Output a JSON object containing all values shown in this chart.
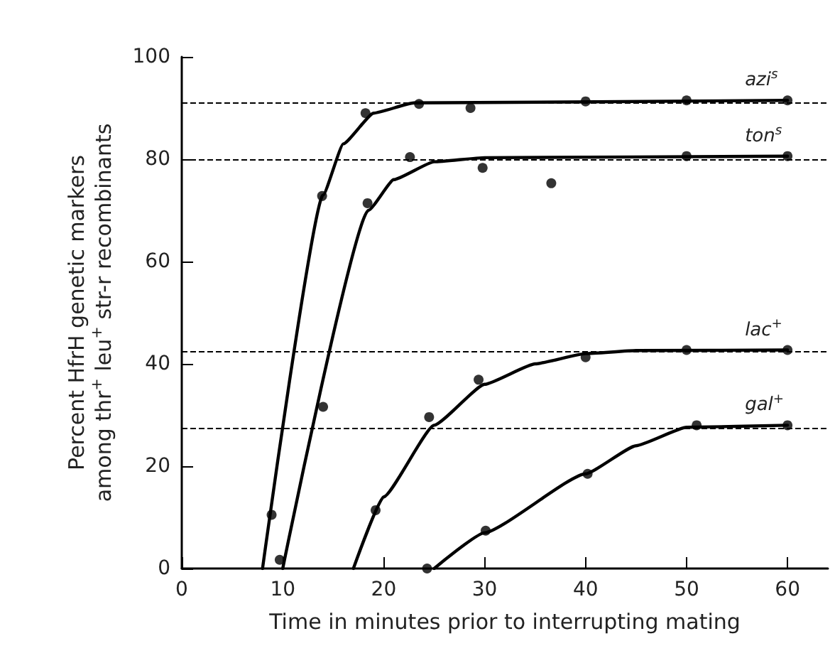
{
  "chart_data": {
    "type": "line",
    "xlabel": "Time in minutes prior to interrupting mating",
    "ylabel": "Percent HfrH genetic markers\namong thr$^{+}$ leu$^{+}$ str-r recombinants",
    "xlim": [
      0,
      64
    ],
    "xticks": [
      0,
      10,
      20,
      30,
      40,
      50,
      60
    ],
    "ylim": [
      0,
      100
    ],
    "yticks": [
      0,
      20,
      40,
      60,
      80,
      100
    ],
    "grid": false,
    "legend": false,
    "ref_lines": [
      {
        "axis": "y",
        "value": 91,
        "color": "#000000",
        "line_style": "dashed"
      },
      {
        "axis": "y",
        "value": 80,
        "color": "#000000",
        "line_style": "dashed"
      },
      {
        "axis": "y",
        "value": 42.5,
        "color": "#000000",
        "line_style": "dashed"
      },
      {
        "axis": "y",
        "value": 27.5,
        "color": "#000000",
        "line_style": "dashed"
      }
    ],
    "series": [
      {
        "name": "azi$^{s}$",
        "color": "#000000",
        "marker": "none",
        "line_style": "solid",
        "x": [
          8,
          14,
          16,
          19,
          23,
          60
        ],
        "values": [
          0,
          73,
          83,
          89,
          91,
          91.5
        ]
      },
      {
        "type": "scatter",
        "color": "#000000",
        "marker": "circle",
        "x": [
          8.9,
          13.9,
          18.2,
          23.5,
          28.6,
          40,
          50,
          60
        ],
        "values": [
          10.5,
          72.8,
          89,
          90.8,
          90,
          91.3,
          91.5,
          91.5
        ]
      },
      {
        "name": "ton$^{s}$",
        "color": "#000000",
        "marker": "none",
        "line_style": "solid",
        "x": [
          10,
          18.5,
          21,
          25,
          30,
          60
        ],
        "values": [
          0,
          70,
          76,
          79.5,
          80.3,
          80.6
        ]
      },
      {
        "type": "scatter",
        "color": "#000000",
        "marker": "circle",
        "x": [
          9.7,
          14,
          18.4,
          22.6,
          29.8,
          36.6,
          50,
          60
        ],
        "values": [
          1.7,
          31.6,
          71.4,
          80.4,
          78.3,
          75.3,
          80.6,
          80.6
        ]
      },
      {
        "name": "lac$^{+}$",
        "color": "#000000",
        "marker": "none",
        "line_style": "solid",
        "x": [
          17,
          20,
          25,
          30,
          35,
          40,
          45,
          60
        ],
        "values": [
          0,
          14,
          28,
          36,
          40,
          42,
          42.6,
          42.7
        ]
      },
      {
        "type": "scatter",
        "color": "#000000",
        "marker": "circle",
        "x": [
          19.2,
          24.5,
          29.4,
          40,
          50,
          60
        ],
        "values": [
          11.4,
          29.6,
          36.9,
          41.3,
          42.7,
          42.7
        ]
      },
      {
        "name": "gal$^{+}$",
        "color": "#000000",
        "marker": "none",
        "line_style": "solid",
        "x": [
          25,
          30,
          40,
          45,
          50,
          60
        ],
        "values": [
          0,
          7,
          18.5,
          24,
          27.6,
          28
        ]
      },
      {
        "type": "scatter",
        "color": "#000000",
        "marker": "circle",
        "x": [
          24.3,
          30.1,
          40.2,
          51,
          60
        ],
        "values": [
          0,
          7.4,
          18.5,
          28,
          28
        ]
      }
    ]
  }
}
